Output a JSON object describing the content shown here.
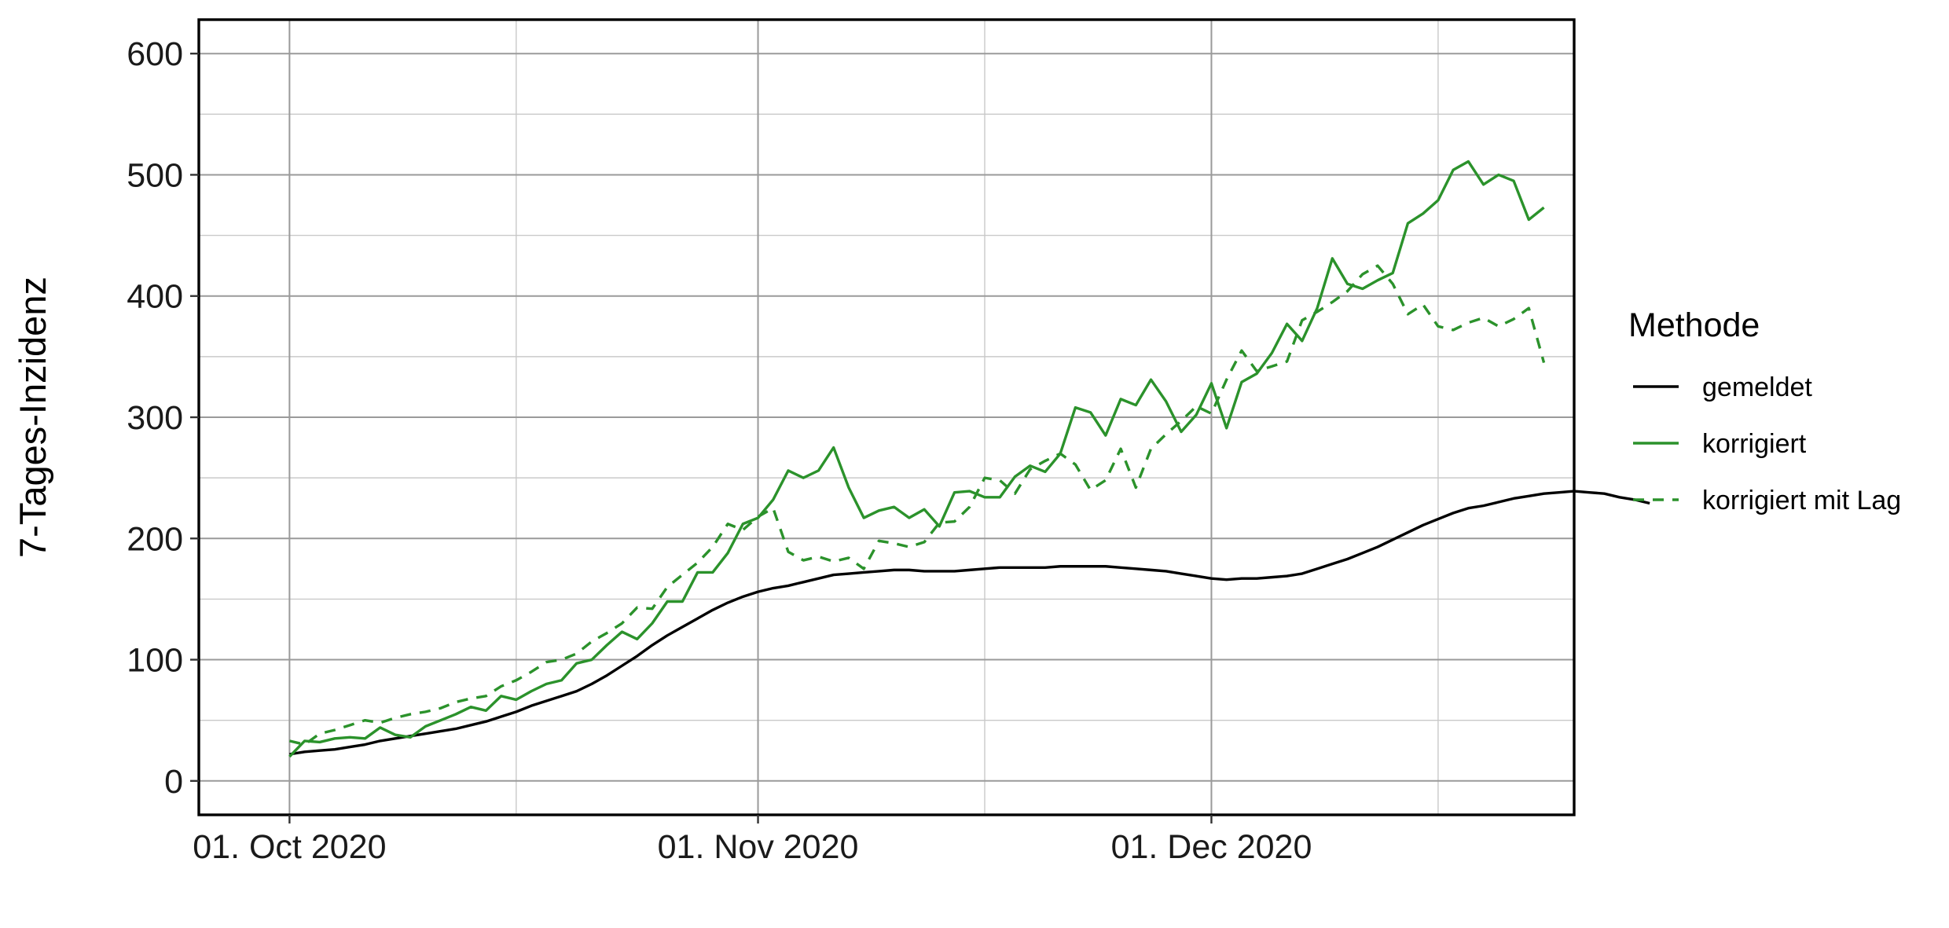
{
  "chart_data": {
    "type": "line",
    "title": "",
    "xlabel": "",
    "ylabel": "7-Tages-Inzidenz",
    "ylim": [
      -28,
      628
    ],
    "y_ticks": [
      0,
      100,
      200,
      300,
      400,
      500,
      600
    ],
    "x_range": [
      "2020-09-25",
      "2020-12-25"
    ],
    "x_ticks": [
      {
        "date": "2020-10-01",
        "label": "01. Oct 2020"
      },
      {
        "date": "2020-11-01",
        "label": "01. Nov 2020"
      },
      {
        "date": "2020-12-01",
        "label": "01. Dec 2020"
      }
    ],
    "x_minor_dates": [
      "2020-10-16",
      "2020-11-16",
      "2020-12-16"
    ],
    "grid": true,
    "legend": {
      "title": "Methode",
      "position": "right"
    },
    "x_start": "2020-10-01",
    "series": [
      {
        "name": "gemeldet",
        "color": "#000000",
        "dash": "solid",
        "values": [
          22,
          24,
          25,
          26,
          28,
          30,
          33,
          35,
          37,
          39,
          41,
          43,
          46,
          49,
          53,
          57,
          62,
          66,
          70,
          74,
          80,
          87,
          95,
          103,
          112,
          120,
          127,
          134,
          141,
          147,
          152,
          156,
          159,
          161,
          164,
          167,
          170,
          171,
          172,
          173,
          174,
          174,
          173,
          173,
          173,
          174,
          175,
          176,
          176,
          176,
          176,
          177,
          177,
          177,
          177,
          176,
          175,
          174,
          173,
          171,
          169,
          167,
          166,
          167,
          167,
          168,
          169,
          171,
          175,
          179,
          183,
          188,
          193,
          199,
          205,
          211,
          216,
          221,
          225,
          227,
          230,
          233,
          235,
          237,
          238,
          239,
          238,
          237,
          234,
          232,
          229
        ]
      },
      {
        "name": "korrigiert",
        "color": "#2b922b",
        "dash": "solid",
        "values": [
          20,
          33,
          32,
          35,
          36,
          35,
          44,
          38,
          36,
          45,
          50,
          55,
          61,
          58,
          70,
          67,
          74,
          80,
          83,
          97,
          100,
          112,
          123,
          117,
          130,
          148,
          148,
          172,
          172,
          188,
          212,
          217,
          232,
          256,
          250,
          256,
          275,
          242,
          217,
          223,
          226,
          217,
          224,
          210,
          238,
          239,
          234,
          234,
          251,
          260,
          255,
          270,
          308,
          304,
          285,
          315,
          310,
          331,
          313,
          288,
          302,
          328,
          291,
          329,
          336,
          353,
          377,
          363,
          390,
          431,
          410,
          406,
          413,
          419,
          460,
          468,
          479,
          504,
          511,
          492,
          500,
          495,
          463,
          473
        ]
      },
      {
        "name": "korrigiert mit Lag",
        "color": "#2b922b",
        "dash": "dashed",
        "values": [
          33,
          30,
          39,
          42,
          46,
          50,
          48,
          52,
          55,
          57,
          60,
          65,
          68,
          70,
          78,
          83,
          90,
          98,
          100,
          105,
          115,
          122,
          130,
          143,
          142,
          160,
          170,
          180,
          193,
          212,
          207,
          218,
          225,
          189,
          182,
          185,
          181,
          184,
          175,
          198,
          196,
          193,
          197,
          213,
          214,
          226,
          250,
          248,
          237,
          257,
          264,
          270,
          261,
          240,
          248,
          274,
          242,
          274,
          286,
          297,
          309,
          303,
          331,
          355,
          338,
          342,
          346,
          380,
          387,
          395,
          404,
          418,
          425,
          410,
          385,
          393,
          375,
          372,
          378,
          382,
          375,
          381,
          390,
          345
        ]
      }
    ]
  }
}
